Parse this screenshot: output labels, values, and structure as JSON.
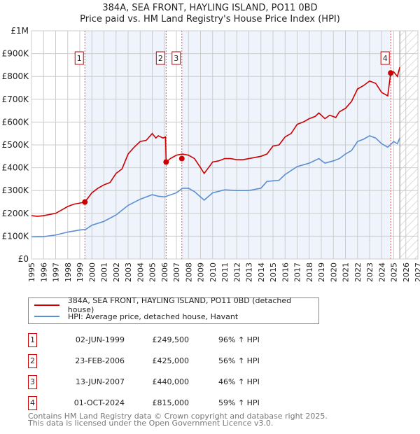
{
  "chart_data": {
    "type": "line",
    "title": "384A, SEA FRONT, HAYLING ISLAND, PO11 0BD",
    "subtitle": "Price paid vs. HM Land Registry's House Price Index (HPI)",
    "xlim": [
      1995,
      2027
    ],
    "ylim": [
      0,
      1000000
    ],
    "x_ticks": [
      "1995",
      "1996",
      "1997",
      "1998",
      "1999",
      "2000",
      "2001",
      "2002",
      "2003",
      "2004",
      "2005",
      "2006",
      "2007",
      "2008",
      "2009",
      "2010",
      "2011",
      "2012",
      "2013",
      "2014",
      "2015",
      "2016",
      "2017",
      "2018",
      "2019",
      "2020",
      "2021",
      "2022",
      "2023",
      "2024",
      "2025",
      "2026",
      "2027"
    ],
    "y_ticks": [
      {
        "v": 0,
        "l": "£0"
      },
      {
        "v": 100000,
        "l": "£100K"
      },
      {
        "v": 200000,
        "l": "£200K"
      },
      {
        "v": 300000,
        "l": "£300K"
      },
      {
        "v": 400000,
        "l": "£400K"
      },
      {
        "v": 500000,
        "l": "£500K"
      },
      {
        "v": 600000,
        "l": "£600K"
      },
      {
        "v": 700000,
        "l": "£700K"
      },
      {
        "v": 800000,
        "l": "£800K"
      },
      {
        "v": 900000,
        "l": "£900K"
      },
      {
        "v": 1000000,
        "l": "£1M"
      }
    ],
    "series": [
      {
        "name": "384A, SEA FRONT, HAYLING ISLAND, PO11 0BD (detached house)",
        "color": "#cc0000",
        "x": [
          1995,
          1995.5,
          1996,
          1996.5,
          1997,
          1997.5,
          1998,
          1998.5,
          1999,
          1999.42,
          2000,
          2000.5,
          2001,
          2001.5,
          2002,
          2002.5,
          2003,
          2003.5,
          2004,
          2004.5,
          2005,
          2005.3,
          2005.5,
          2005.9,
          2006.1,
          2006.15,
          2006.5,
          2007,
          2007.5,
          2008,
          2008.5,
          2009,
          2009.3,
          2009.8,
          2010,
          2010.5,
          2011,
          2011.5,
          2012,
          2012.5,
          2013,
          2013.5,
          2014,
          2014.5,
          2015,
          2015.5,
          2016,
          2016.5,
          2017,
          2017.5,
          2018,
          2018.5,
          2018.8,
          2019.3,
          2019.7,
          2020.2,
          2020.5,
          2021,
          2021.5,
          2022,
          2022.5,
          2023,
          2023.5,
          2024,
          2024.5,
          2024.75,
          2025,
          2025.3,
          2025.5
        ],
        "y": [
          190000,
          187000,
          190000,
          195000,
          200000,
          215000,
          230000,
          240000,
          245000,
          249500,
          290000,
          310000,
          325000,
          335000,
          375000,
          395000,
          460000,
          490000,
          515000,
          520000,
          550000,
          530000,
          540000,
          530000,
          535000,
          425000,
          440000,
          455000,
          460000,
          455000,
          440000,
          400000,
          375000,
          410000,
          425000,
          430000,
          440000,
          440000,
          435000,
          435000,
          440000,
          445000,
          450000,
          460000,
          495000,
          500000,
          535000,
          550000,
          590000,
          600000,
          615000,
          625000,
          640000,
          615000,
          630000,
          620000,
          645000,
          660000,
          690000,
          745000,
          760000,
          780000,
          770000,
          730000,
          715000,
          815000,
          820000,
          800000,
          840000
        ]
      },
      {
        "name": "HPI: Average price, detached house, Havant",
        "color": "#5b8fd0",
        "x": [
          1995,
          1996,
          1997,
          1998,
          1999,
          1999.5,
          2000,
          2001,
          2002,
          2003,
          2004,
          2005,
          2005.5,
          2006,
          2007,
          2007.5,
          2008,
          2008.5,
          2009.3,
          2010,
          2011,
          2012,
          2013,
          2014,
          2014.5,
          2015.5,
          2016,
          2017,
          2018,
          2018.8,
          2019.3,
          2020,
          2020.5,
          2021,
          2021.5,
          2022,
          2022.5,
          2023,
          2023.5,
          2024,
          2024.5,
          2025,
          2025.3,
          2025.5
        ],
        "y": [
          97000,
          98000,
          105000,
          118000,
          127000,
          130000,
          148000,
          165000,
          193000,
          235000,
          262000,
          282000,
          275000,
          272000,
          290000,
          310000,
          310000,
          295000,
          258000,
          290000,
          303000,
          300000,
          300000,
          310000,
          340000,
          345000,
          370000,
          405000,
          420000,
          440000,
          420000,
          430000,
          440000,
          460000,
          475000,
          515000,
          525000,
          540000,
          530000,
          505000,
          490000,
          515000,
          505000,
          530000
        ]
      }
    ],
    "sales": [
      {
        "label": "1",
        "x": 1999.42,
        "date": "02-JUN-1999",
        "price_value": 249500,
        "price": "£249,500",
        "hpi": "96% ↑ HPI"
      },
      {
        "label": "2",
        "x": 2006.15,
        "date": "23-FEB-2006",
        "price_value": 425000,
        "price": "£425,000",
        "hpi": "56% ↑ HPI"
      },
      {
        "label": "3",
        "x": 2007.45,
        "date": "13-JUN-2007",
        "price_value": 440000,
        "price": "£440,000",
        "hpi": "46% ↑ HPI"
      },
      {
        "label": "4",
        "x": 2024.75,
        "date": "01-OCT-2024",
        "price_value": 815000,
        "price": "£815,000",
        "hpi": "59% ↑ HPI"
      }
    ],
    "shaded_ranges": [
      [
        1999.42,
        2006.15
      ],
      [
        2007.45,
        2024.75
      ]
    ],
    "forecast_from": 2025.5
  },
  "footer": [
    "Contains HM Land Registry data © Crown copyright and database right 2025.",
    "This data is licensed under the Open Government Licence v3.0."
  ]
}
